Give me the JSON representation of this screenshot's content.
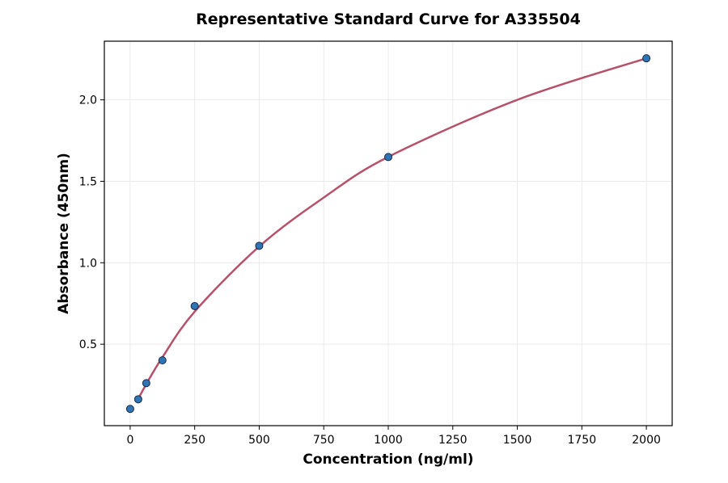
{
  "chart_data": {
    "type": "scatter",
    "title": "Representative Standard Curve for A335504",
    "xlabel": "Concentration (ng/ml)",
    "ylabel": "Absorbance (450nm)",
    "xlim": [
      -100,
      2100
    ],
    "ylim": [
      0.0,
      2.36
    ],
    "xticks": [
      0,
      250,
      500,
      750,
      1000,
      1250,
      1500,
      1750,
      2000
    ],
    "yticks": [
      0.5,
      1.0,
      1.5,
      2.0
    ],
    "xtick_labels": [
      "0",
      "250",
      "500",
      "750",
      "1000",
      "1250",
      "1500",
      "1750",
      "2000"
    ],
    "ytick_labels": [
      "0.5",
      "1.0",
      "1.5",
      "2.0"
    ],
    "grid": true,
    "points": [
      {
        "x": 0,
        "y": 0.103
      },
      {
        "x": 31.25,
        "y": 0.162
      },
      {
        "x": 62.5,
        "y": 0.261
      },
      {
        "x": 125,
        "y": 0.401
      },
      {
        "x": 250,
        "y": 0.734
      },
      {
        "x": 500,
        "y": 1.104
      },
      {
        "x": 1000,
        "y": 1.649
      },
      {
        "x": 2000,
        "y": 2.255
      }
    ],
    "fit_curve": {
      "type": "line",
      "x_range": [
        31.25,
        2000
      ]
    },
    "colors": {
      "curve": "#b5526a",
      "point_fill": "#2e75b6",
      "point_edge": "#1a2a44",
      "grid": "#e6e6e6"
    }
  }
}
